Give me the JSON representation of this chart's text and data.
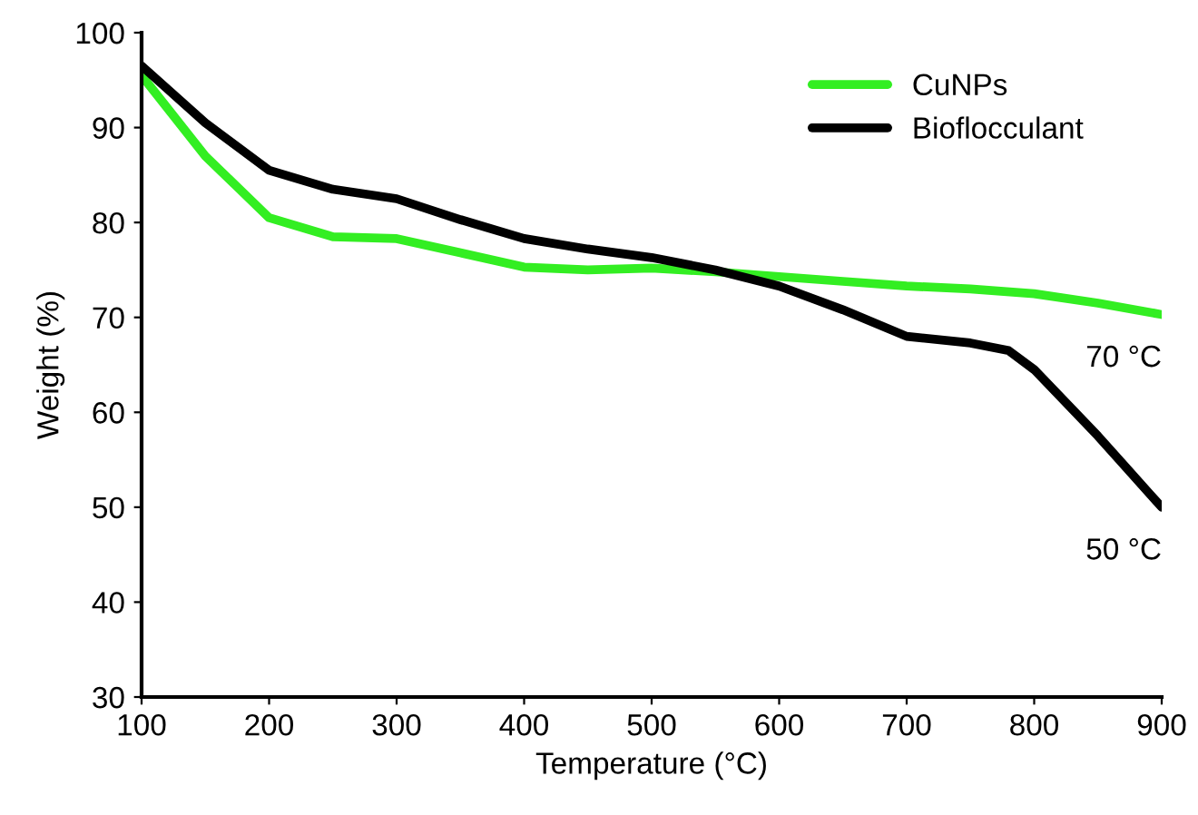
{
  "chart_data": {
    "type": "line",
    "xlabel": "Temperature (°C)",
    "ylabel": "Weight (%)",
    "xlim": [
      100,
      900
    ],
    "ylim": [
      30,
      100
    ],
    "xticks": [
      100,
      200,
      300,
      400,
      500,
      600,
      700,
      800,
      900
    ],
    "yticks": [
      30,
      40,
      50,
      60,
      70,
      80,
      90,
      100
    ],
    "grid": false,
    "legend": "top right",
    "marker": "none",
    "line_style": "solid",
    "series": [
      {
        "name": "CuNPs",
        "color": "#33ee22",
        "x": [
          100,
          150,
          200,
          250,
          300,
          350,
          400,
          450,
          500,
          550,
          600,
          650,
          700,
          750,
          800,
          850,
          900
        ],
        "values": [
          95.5,
          87,
          80.5,
          78.5,
          78.3,
          76.8,
          75.3,
          75,
          75.2,
          74.8,
          74.3,
          73.8,
          73.3,
          73,
          72.5,
          71.5,
          70.3
        ]
      },
      {
        "name": "Bioflocculant",
        "color": "#000000",
        "x": [
          100,
          150,
          200,
          250,
          300,
          350,
          400,
          450,
          500,
          550,
          600,
          650,
          700,
          750,
          780,
          800,
          850,
          900
        ],
        "values": [
          96.5,
          90.5,
          85.5,
          83.5,
          82.5,
          80.3,
          78.3,
          77.2,
          76.3,
          75,
          73.3,
          70.8,
          68,
          67.3,
          66.5,
          64.5,
          57.5,
          50
        ]
      }
    ],
    "annotations": [
      {
        "text": "70 °C",
        "x": 900,
        "y": 70.3
      },
      {
        "text": "50 °C",
        "x": 900,
        "y": 50
      }
    ]
  }
}
